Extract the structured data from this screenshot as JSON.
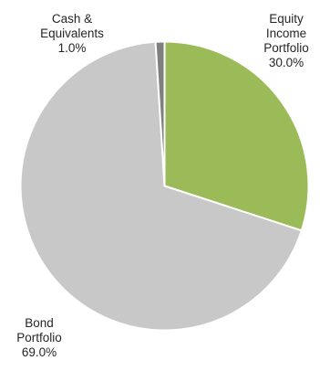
{
  "chart_data": {
    "type": "pie",
    "title": "",
    "slices": [
      {
        "label": [
          "Equity",
          "Income",
          "Portfolio"
        ],
        "value": 30.0,
        "value_label": "30.0%",
        "color": "#9bbb59"
      },
      {
        "label": [
          "Bond",
          "Portfolio"
        ],
        "value": 69.0,
        "value_label": "69.0%",
        "color": "#c8c8c8"
      },
      {
        "label": [
          "Cash &",
          "Equivalents"
        ],
        "value": 1.0,
        "value_label": "1.0%",
        "color": "#7f7f7f"
      }
    ],
    "start_angle_deg": 0,
    "direction": "clockwise",
    "slice_border_color": "#ffffff",
    "legend": "none"
  }
}
